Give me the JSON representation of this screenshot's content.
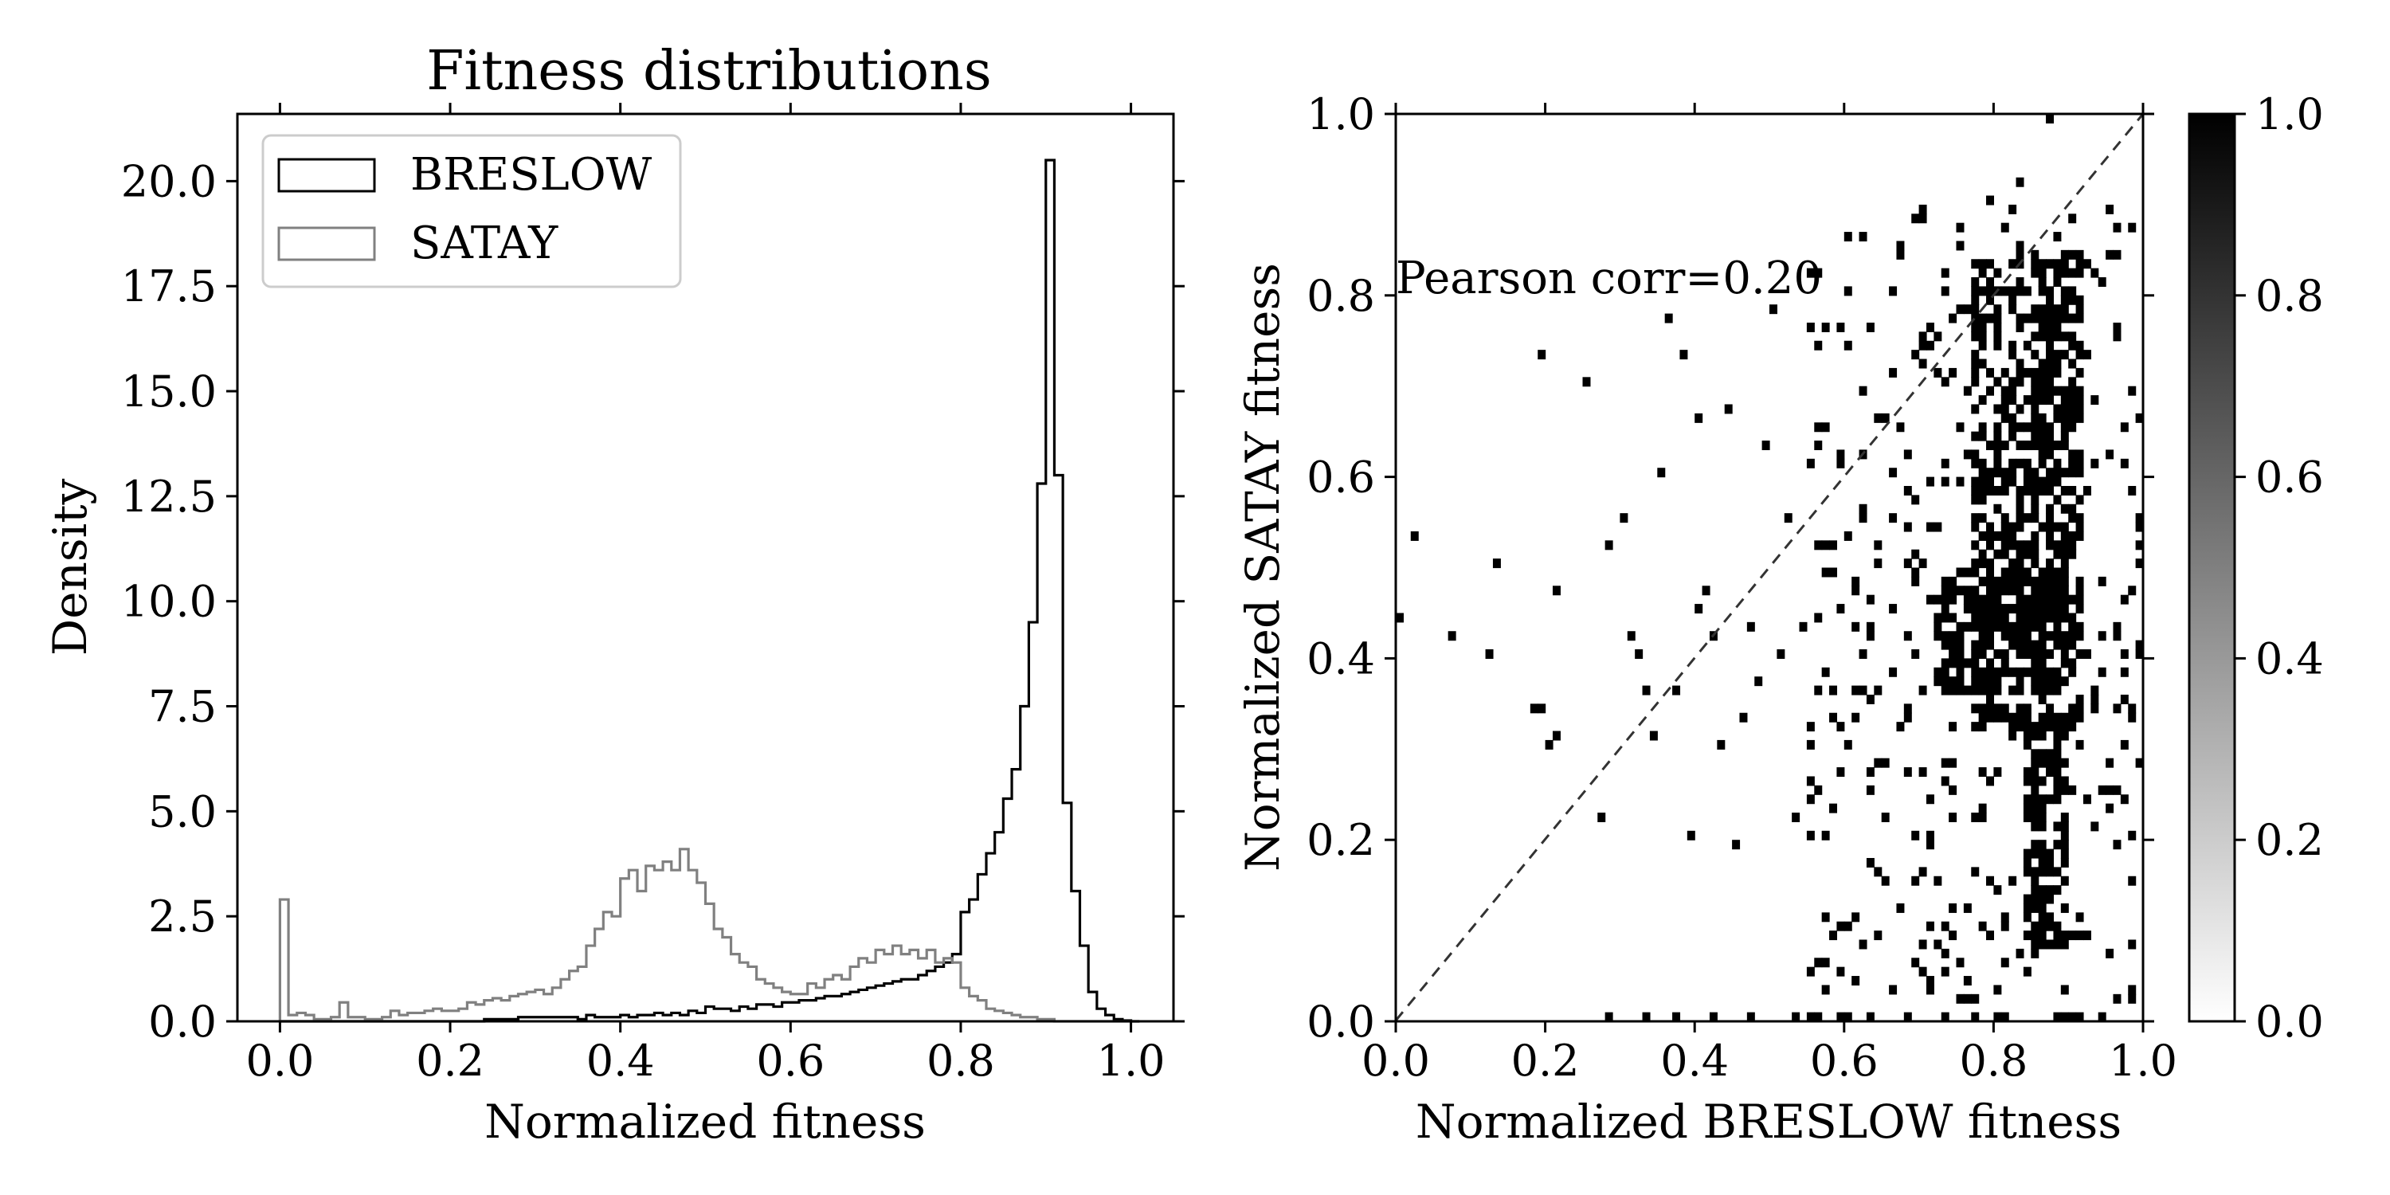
{
  "chart_data": [
    {
      "type": "histogram",
      "title": "Fitness distributions",
      "xlabel": "Normalized fitness",
      "ylabel": "Density",
      "xlim": [
        -0.05,
        1.05
      ],
      "ylim": [
        0,
        21.6
      ],
      "xticks": [
        0.0,
        0.2,
        0.4,
        0.6,
        0.8,
        1.0
      ],
      "xtick_labels": [
        "0.0",
        "0.2",
        "0.4",
        "0.6",
        "0.8",
        "1.0"
      ],
      "yticks": [
        0.0,
        2.5,
        5.0,
        7.5,
        10.0,
        12.5,
        15.0,
        17.5,
        20.0
      ],
      "ytick_labels": [
        "0.0",
        "2.5",
        "5.0",
        "7.5",
        "10.0",
        "12.5",
        "15.0",
        "17.5",
        "20.0"
      ],
      "legend": {
        "position": "upper-left",
        "entries": [
          "BRESLOW",
          "SATAY"
        ]
      },
      "bin_edges_start": 0.0,
      "bin_width": 0.01,
      "series": [
        {
          "name": "BRESLOW",
          "color": "#000000",
          "values": [
            0,
            0,
            0,
            0,
            0,
            0,
            0,
            0,
            0,
            0,
            0,
            0,
            0,
            0,
            0,
            0,
            0,
            0,
            0,
            0,
            0,
            0,
            0,
            0,
            0.05,
            0.05,
            0.05,
            0.05,
            0.1,
            0.1,
            0.1,
            0.1,
            0.1,
            0.1,
            0.1,
            0.05,
            0.15,
            0.1,
            0.1,
            0.1,
            0.15,
            0.1,
            0.15,
            0.15,
            0.2,
            0.15,
            0.2,
            0.15,
            0.25,
            0.2,
            0.35,
            0.3,
            0.3,
            0.25,
            0.35,
            0.3,
            0.4,
            0.4,
            0.35,
            0.45,
            0.45,
            0.5,
            0.5,
            0.55,
            0.6,
            0.6,
            0.65,
            0.7,
            0.75,
            0.8,
            0.85,
            0.9,
            0.95,
            1.0,
            1.0,
            1.1,
            1.2,
            1.3,
            1.4,
            1.6,
            2.6,
            2.9,
            3.5,
            4.0,
            4.5,
            5.3,
            6.0,
            7.5,
            9.5,
            12.8,
            20.5,
            13.0,
            5.2,
            3.1,
            1.8,
            0.7,
            0.3,
            0.15,
            0.05,
            0.02,
            0
          ]
        },
        {
          "name": "SATAY",
          "color": "#808080",
          "values": [
            2.9,
            0.15,
            0.2,
            0.15,
            0.05,
            0.05,
            0.1,
            0.45,
            0.1,
            0.1,
            0.05,
            0.05,
            0.1,
            0.25,
            0.15,
            0.2,
            0.2,
            0.25,
            0.3,
            0.25,
            0.25,
            0.3,
            0.45,
            0.4,
            0.5,
            0.55,
            0.5,
            0.6,
            0.65,
            0.7,
            0.75,
            0.65,
            0.8,
            1.0,
            1.2,
            1.3,
            1.8,
            2.2,
            2.6,
            2.5,
            3.4,
            3.6,
            3.1,
            3.7,
            3.6,
            3.8,
            3.6,
            4.1,
            3.6,
            3.3,
            2.8,
            2.2,
            2.0,
            1.6,
            1.4,
            1.3,
            1.0,
            0.9,
            0.8,
            0.7,
            0.65,
            0.65,
            0.9,
            0.8,
            1.0,
            1.1,
            1.0,
            1.3,
            1.5,
            1.4,
            1.7,
            1.6,
            1.8,
            1.6,
            1.7,
            1.5,
            1.7,
            1.4,
            1.5,
            1.4,
            0.8,
            0.6,
            0.5,
            0.3,
            0.25,
            0.2,
            0.15,
            0.1,
            0.1,
            0.05,
            0.05,
            0,
            0,
            0,
            0,
            0,
            0,
            0,
            0,
            0,
            0
          ]
        }
      ]
    },
    {
      "type": "heatmap",
      "subtype": "2d-histogram",
      "title": "",
      "xlabel": "Normalized BRESLOW fitness",
      "ylabel": "Normalized SATAY fitness",
      "xlim": [
        0.0,
        1.0
      ],
      "ylim": [
        0.0,
        1.0
      ],
      "xticks": [
        0.0,
        0.2,
        0.4,
        0.6,
        0.8,
        1.0
      ],
      "xtick_labels": [
        "0.0",
        "0.2",
        "0.4",
        "0.6",
        "0.8",
        "1.0"
      ],
      "yticks": [
        0.0,
        0.2,
        0.4,
        0.6,
        0.8,
        1.0
      ],
      "ytick_labels": [
        "0.0",
        "0.2",
        "0.4",
        "0.6",
        "0.8",
        "1.0"
      ],
      "colormap": "gray_r",
      "colorbar": {
        "range": [
          0.0,
          1.0
        ],
        "ticks": [
          0.0,
          0.2,
          0.4,
          0.6,
          0.8,
          1.0
        ],
        "tick_labels": [
          "0.0",
          "0.2",
          "0.4",
          "0.6",
          "0.8",
          "1.0"
        ]
      },
      "annotation": "Pearson corr=0.20",
      "reference_line": {
        "from": [
          0.0,
          0.0
        ],
        "to": [
          1.0,
          1.0
        ],
        "style": "dashed"
      },
      "bins": 100,
      "dense_regions": [
        {
          "x": [
            0.77,
            0.92
          ],
          "y": [
            0.32,
            0.85
          ]
        },
        {
          "x": [
            0.72,
            0.9
          ],
          "y": [
            0.36,
            0.5
          ]
        },
        {
          "x": [
            0.8,
            0.92
          ],
          "y": [
            0.0,
            0.01
          ]
        },
        {
          "x": [
            0.55,
            0.62
          ],
          "y": [
            0.0,
            0.01
          ]
        },
        {
          "x": [
            0.84,
            0.9
          ],
          "y": [
            0.08,
            0.34
          ]
        }
      ],
      "sparse_points": [
        [
          0.0,
          0.44
        ],
        [
          0.02,
          0.53
        ],
        [
          0.07,
          0.42
        ],
        [
          0.12,
          0.4
        ],
        [
          0.13,
          0.5
        ],
        [
          0.18,
          0.34
        ],
        [
          0.19,
          0.34
        ],
        [
          0.19,
          0.73
        ],
        [
          0.2,
          0.3
        ],
        [
          0.21,
          0.31
        ],
        [
          0.21,
          0.47
        ],
        [
          0.25,
          0.7
        ],
        [
          0.27,
          0.22
        ],
        [
          0.28,
          0.52
        ],
        [
          0.3,
          0.55
        ],
        [
          0.31,
          0.42
        ],
        [
          0.32,
          0.4
        ],
        [
          0.33,
          0.36
        ],
        [
          0.34,
          0.31
        ],
        [
          0.35,
          0.6
        ],
        [
          0.36,
          0.77
        ],
        [
          0.37,
          0.36
        ],
        [
          0.38,
          0.73
        ],
        [
          0.39,
          0.2
        ],
        [
          0.4,
          0.45
        ],
        [
          0.4,
          0.66
        ],
        [
          0.41,
          0.47
        ],
        [
          0.42,
          0.42
        ],
        [
          0.43,
          0.3
        ],
        [
          0.44,
          0.67
        ],
        [
          0.45,
          0.19
        ],
        [
          0.46,
          0.33
        ],
        [
          0.47,
          0.43
        ],
        [
          0.48,
          0.37
        ],
        [
          0.49,
          0.63
        ],
        [
          0.5,
          0.78
        ],
        [
          0.51,
          0.4
        ],
        [
          0.52,
          0.55
        ],
        [
          0.53,
          0.22
        ],
        [
          0.54,
          0.43
        ],
        [
          0.55,
          0.2
        ],
        [
          0.56,
          0.65
        ],
        [
          0.57,
          0.36
        ],
        [
          0.58,
          0.49
        ],
        [
          0.59,
          0.76
        ],
        [
          0.6,
          0.3
        ],
        [
          0.61,
          0.47
        ],
        [
          0.62,
          0.56
        ],
        [
          0.63,
          0.25
        ],
        [
          0.64,
          0.09
        ],
        [
          0.65,
          0.66
        ],
        [
          0.66,
          0.38
        ],
        [
          0.67,
          0.85
        ],
        [
          0.68,
          0.42
        ],
        [
          0.69,
          0.2
        ],
        [
          0.7,
          0.75
        ],
        [
          0.71,
          0.59
        ],
        [
          0.72,
          0.15
        ],
        [
          0.73,
          0.05
        ],
        [
          0.74,
          0.32
        ],
        [
          0.75,
          0.65
        ],
        [
          0.76,
          0.12
        ],
        [
          0.78,
          0.23
        ],
        [
          0.79,
          0.9
        ],
        [
          0.8,
          0.03
        ],
        [
          0.81,
          0.1
        ],
        [
          0.82,
          0.15
        ],
        [
          0.83,
          0.92
        ],
        [
          0.84,
          0.05
        ],
        [
          0.86,
          0.12
        ],
        [
          0.87,
          0.99
        ],
        [
          0.88,
          0.16
        ],
        [
          0.89,
          0.12
        ],
        [
          0.9,
          0.25
        ],
        [
          0.91,
          0.55
        ],
        [
          0.92,
          0.73
        ],
        [
          0.93,
          0.35
        ],
        [
          0.94,
          0.48
        ],
        [
          0.95,
          0.29
        ],
        [
          0.96,
          0.42
        ],
        [
          0.97,
          0.38
        ],
        [
          0.99,
          0.4
        ],
        [
          0.95,
          0.62
        ],
        [
          0.93,
          0.82
        ],
        [
          0.71,
          0.04
        ],
        [
          0.66,
          0.03
        ],
        [
          0.53,
          0.0
        ],
        [
          0.47,
          0.0
        ],
        [
          0.42,
          0.0
        ],
        [
          0.37,
          0.0
        ],
        [
          0.33,
          0.0
        ],
        [
          0.28,
          0.0
        ],
        [
          0.63,
          0.0
        ],
        [
          0.68,
          0.0
        ],
        [
          0.73,
          0.0
        ],
        [
          0.77,
          0.0
        ],
        [
          0.94,
          0.0
        ],
        [
          0.96,
          0.02
        ],
        [
          0.62,
          0.4
        ],
        [
          0.64,
          0.52
        ],
        [
          0.61,
          0.33
        ],
        [
          0.66,
          0.45
        ],
        [
          0.69,
          0.48
        ],
        [
          0.7,
          0.36
        ],
        [
          0.72,
          0.54
        ],
        [
          0.74,
          0.28
        ],
        [
          0.75,
          0.43
        ],
        [
          0.76,
          0.62
        ],
        [
          0.68,
          0.62
        ],
        [
          0.73,
          0.7
        ],
        [
          0.65,
          0.28
        ],
        [
          0.67,
          0.32
        ],
        [
          0.7,
          0.27
        ],
        [
          0.71,
          0.46
        ],
        [
          0.63,
          0.42
        ],
        [
          0.58,
          0.38
        ],
        [
          0.56,
          0.44
        ],
        [
          0.59,
          0.27
        ],
        [
          0.55,
          0.32
        ],
        [
          0.66,
          0.55
        ],
        [
          0.69,
          0.58
        ]
      ]
    }
  ]
}
